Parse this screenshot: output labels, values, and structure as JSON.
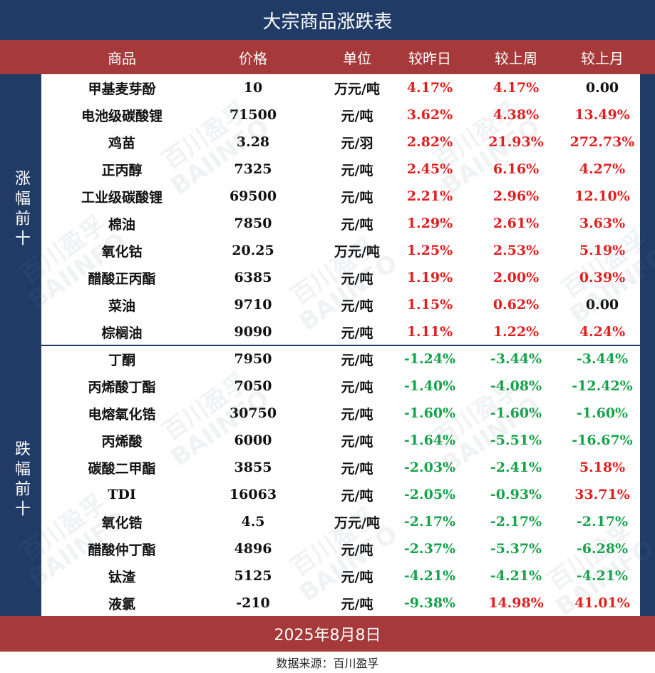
{
  "title": "大宗商品涨跌表",
  "columns": [
    "商品",
    "价格",
    "单位",
    "较昨日",
    "较上周",
    "较上月"
  ],
  "groups": [
    {
      "label": "涨幅前十",
      "rows": [
        {
          "name": "甲基麦芽酚",
          "price": "10",
          "unit": "万元/吨",
          "d": "4.17%",
          "w": "4.17%",
          "m": "0.00",
          "dt": "up",
          "wt": "up",
          "mt": "flat"
        },
        {
          "name": "电池级碳酸锂",
          "price": "71500",
          "unit": "元/吨",
          "d": "3.62%",
          "w": "4.38%",
          "m": "13.49%",
          "dt": "up",
          "wt": "up",
          "mt": "up"
        },
        {
          "name": "鸡苗",
          "price": "3.28",
          "unit": "元/羽",
          "d": "2.82%",
          "w": "21.93%",
          "m": "272.73%",
          "dt": "up",
          "wt": "up",
          "mt": "up"
        },
        {
          "name": "正丙醇",
          "price": "7325",
          "unit": "元/吨",
          "d": "2.45%",
          "w": "6.16%",
          "m": "4.27%",
          "dt": "up",
          "wt": "up",
          "mt": "up"
        },
        {
          "name": "工业级碳酸锂",
          "price": "69500",
          "unit": "元/吨",
          "d": "2.21%",
          "w": "2.96%",
          "m": "12.10%",
          "dt": "up",
          "wt": "up",
          "mt": "up"
        },
        {
          "name": "棉油",
          "price": "7850",
          "unit": "元/吨",
          "d": "1.29%",
          "w": "2.61%",
          "m": "3.63%",
          "dt": "up",
          "wt": "up",
          "mt": "up"
        },
        {
          "name": "氧化钴",
          "price": "20.25",
          "unit": "万元/吨",
          "d": "1.25%",
          "w": "2.53%",
          "m": "5.19%",
          "dt": "up",
          "wt": "up",
          "mt": "up"
        },
        {
          "name": "醋酸正丙酯",
          "price": "6385",
          "unit": "元/吨",
          "d": "1.19%",
          "w": "2.00%",
          "m": "0.39%",
          "dt": "up",
          "wt": "up",
          "mt": "up"
        },
        {
          "name": "菜油",
          "price": "9710",
          "unit": "元/吨",
          "d": "1.15%",
          "w": "0.62%",
          "m": "0.00",
          "dt": "up",
          "wt": "up",
          "mt": "flat"
        },
        {
          "name": "棕榈油",
          "price": "9090",
          "unit": "元/吨",
          "d": "1.11%",
          "w": "1.22%",
          "m": "4.24%",
          "dt": "up",
          "wt": "up",
          "mt": "up"
        }
      ]
    },
    {
      "label": "跌幅前十",
      "rows": [
        {
          "name": "丁酮",
          "price": "7950",
          "unit": "元/吨",
          "d": "-1.24%",
          "w": "-3.44%",
          "m": "-3.44%",
          "dt": "down",
          "wt": "down",
          "mt": "down"
        },
        {
          "name": "丙烯酸丁酯",
          "price": "7050",
          "unit": "元/吨",
          "d": "-1.40%",
          "w": "-4.08%",
          "m": "-12.42%",
          "dt": "down",
          "wt": "down",
          "mt": "down"
        },
        {
          "name": "电熔氧化锆",
          "price": "30750",
          "unit": "元/吨",
          "d": "-1.60%",
          "w": "-1.60%",
          "m": "-1.60%",
          "dt": "down",
          "wt": "down",
          "mt": "down"
        },
        {
          "name": "丙烯酸",
          "price": "6000",
          "unit": "元/吨",
          "d": "-1.64%",
          "w": "-5.51%",
          "m": "-16.67%",
          "dt": "down",
          "wt": "down",
          "mt": "down"
        },
        {
          "name": "碳酸二甲酯",
          "price": "3855",
          "unit": "元/吨",
          "d": "-2.03%",
          "w": "-2.41%",
          "m": "5.18%",
          "dt": "down",
          "wt": "down",
          "mt": "up"
        },
        {
          "name": "TDI",
          "price": "16063",
          "unit": "元/吨",
          "d": "-2.05%",
          "w": "-0.93%",
          "m": "33.71%",
          "dt": "down",
          "wt": "down",
          "mt": "up"
        },
        {
          "name": "氧化锆",
          "price": "4.5",
          "unit": "万元/吨",
          "d": "-2.17%",
          "w": "-2.17%",
          "m": "-2.17%",
          "dt": "down",
          "wt": "down",
          "mt": "down"
        },
        {
          "name": "醋酸仲丁酯",
          "price": "4896",
          "unit": "元/吨",
          "d": "-2.37%",
          "w": "-5.37%",
          "m": "-6.28%",
          "dt": "down",
          "wt": "down",
          "mt": "down"
        },
        {
          "name": "钛渣",
          "price": "5125",
          "unit": "元/吨",
          "d": "-4.21%",
          "w": "-4.21%",
          "m": "-4.21%",
          "dt": "down",
          "wt": "down",
          "mt": "down"
        },
        {
          "name": "液氯",
          "price": "-210",
          "unit": "元/吨",
          "d": "-9.38%",
          "w": "14.98%",
          "m": "41.01%",
          "dt": "down",
          "wt": "up",
          "mt": "up"
        }
      ]
    }
  ],
  "date": "2025年8月8日",
  "source": "数据来源：百川盈孚",
  "watermark": {
    "cn": "百川盈孚",
    "en": "BAIINFO"
  },
  "colors": {
    "title_bg": "#1f3b66",
    "header_bg": "#a63a3a",
    "up": "#e02020",
    "down": "#16a34a"
  }
}
